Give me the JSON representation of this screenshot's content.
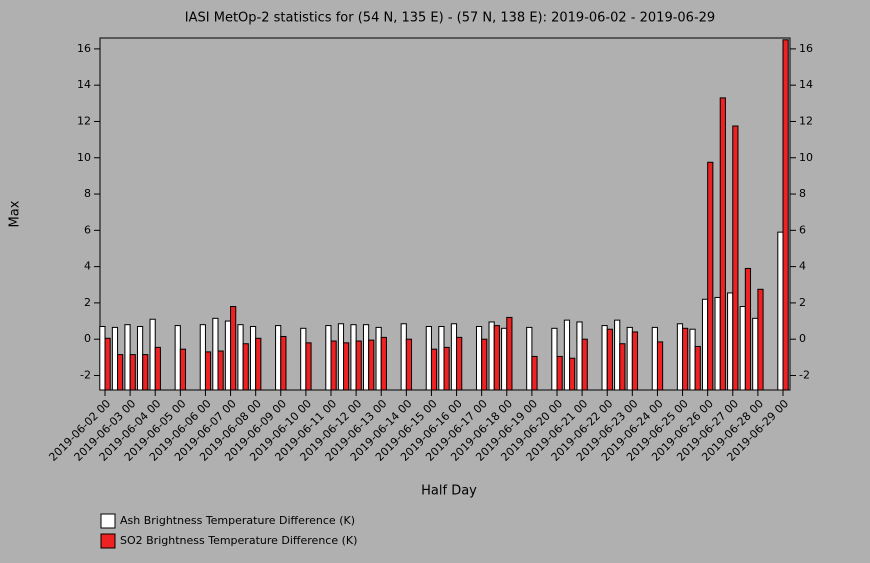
{
  "chart_data": {
    "type": "bar",
    "title": "IASI MetOp-2 statistics for (54 N, 135 E) - (57 N, 138 E): 2019-06-02 - 2019-06-29",
    "x_label": "Half Day",
    "y_label": "Max",
    "categories": [
      "2019-06-02 00",
      null,
      "2019-06-03 00",
      null,
      "2019-06-04 00",
      null,
      "2019-06-05 00",
      null,
      "2019-06-06 00",
      null,
      "2019-06-07 00",
      null,
      "2019-06-08 00",
      null,
      "2019-06-09 00",
      null,
      "2019-06-10 00",
      null,
      "2019-06-11 00",
      null,
      "2019-06-12 00",
      null,
      "2019-06-13 00",
      null,
      "2019-06-14 00",
      null,
      "2019-06-15 00",
      null,
      "2019-06-16 00",
      null,
      "2019-06-17 00",
      null,
      "2019-06-18 00",
      null,
      "2019-06-19 00",
      null,
      "2019-06-20 00",
      null,
      "2019-06-21 00",
      null,
      "2019-06-22 00",
      null,
      "2019-06-23 00",
      null,
      "2019-06-24 00",
      null,
      "2019-06-25 00",
      null,
      "2019-06-26 00",
      null,
      "2019-06-27 00",
      null,
      "2019-06-28 00",
      null,
      "2019-06-29 00"
    ],
    "series": [
      {
        "name": "Ash Brightness Temperature Difference (K)",
        "color": "#ffffff",
        "values": [
          0.7,
          0.65,
          0.8,
          0.7,
          1.1,
          null,
          0.75,
          null,
          0.8,
          1.15,
          1.0,
          0.8,
          0.7,
          null,
          0.75,
          null,
          0.6,
          null,
          0.75,
          0.85,
          0.8,
          0.8,
          0.65,
          null,
          0.85,
          null,
          0.7,
          0.7,
          0.85,
          null,
          0.7,
          0.95,
          0.6,
          null,
          0.65,
          null,
          0.6,
          1.05,
          0.95,
          null,
          0.75,
          1.05,
          0.65,
          null,
          0.65,
          null,
          0.85,
          0.55,
          2.2,
          2.3,
          2.55,
          1.8,
          1.15,
          null,
          5.9
        ]
      },
      {
        "name": "SO2 Brightness Temperature Difference (K)",
        "color": "#ee2222",
        "values": [
          0.05,
          -0.85,
          -0.85,
          -0.85,
          -0.45,
          null,
          -0.55,
          null,
          -0.7,
          -0.65,
          1.8,
          -0.25,
          0.05,
          null,
          0.15,
          null,
          -0.2,
          null,
          -0.1,
          -0.2,
          -0.1,
          -0.05,
          0.1,
          null,
          0.0,
          null,
          -0.55,
          -0.45,
          0.1,
          null,
          0.0,
          0.75,
          1.2,
          null,
          -0.95,
          null,
          -0.95,
          -1.05,
          0.0,
          null,
          0.55,
          -0.25,
          0.4,
          null,
          -0.15,
          null,
          0.6,
          -0.4,
          9.75,
          13.3,
          11.75,
          3.9,
          2.75,
          null,
          16.5
        ]
      }
    ],
    "ylim": [
      -2.8,
      16.6
    ],
    "yticks": [
      -2,
      0,
      2,
      4,
      6,
      8,
      10,
      12,
      14,
      16
    ]
  }
}
